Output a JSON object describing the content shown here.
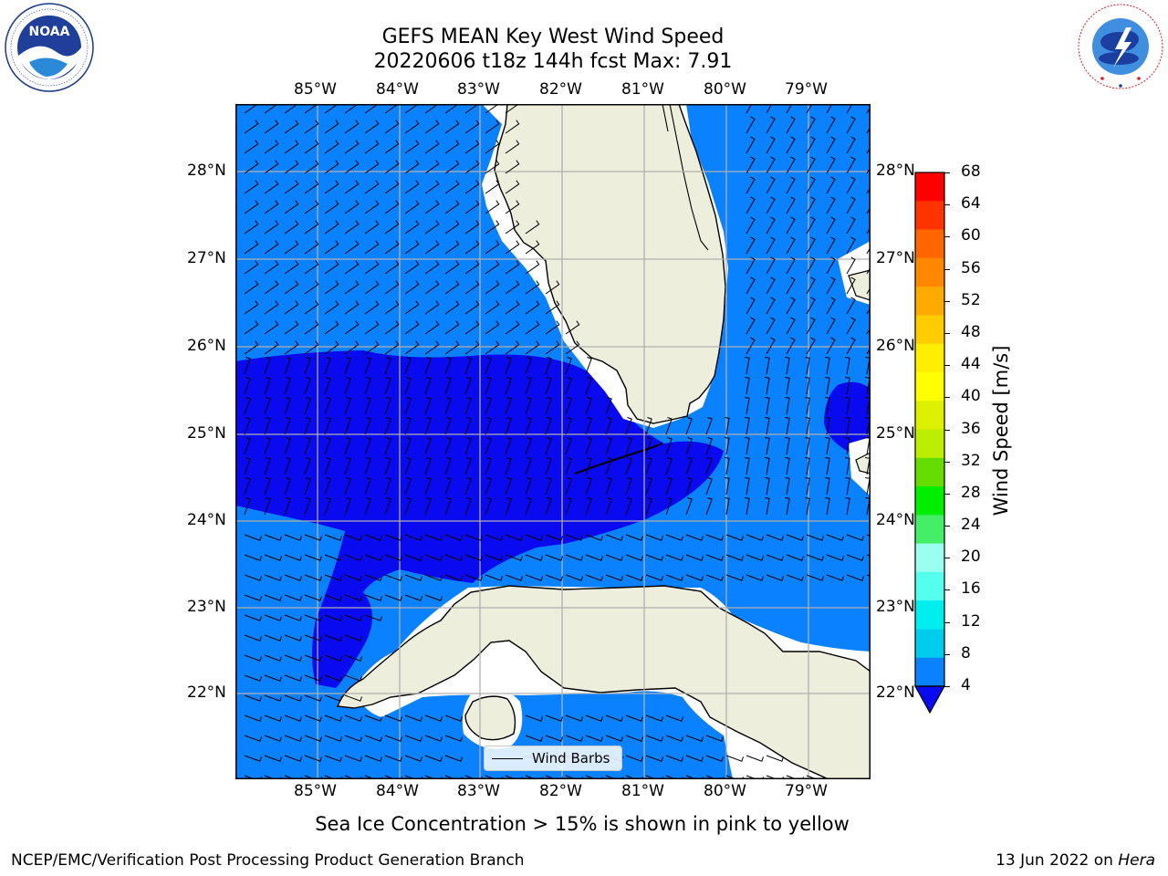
{
  "header": {
    "title_line1": "GEFS MEAN Key West Wind Speed",
    "title_line2": "20220606 t18z 144h fcst   Max: 7.91"
  },
  "logos": {
    "noaa_text": "NOAA",
    "noaa_ring": "NATIONAL OCEANIC AND ATMOSPHERIC ADMINISTRATION · U.S. DEPARTMENT OF COMMERCE",
    "nws_ring": "NATIONAL WEATHER SERVICE"
  },
  "map": {
    "lon_labels": [
      "85°W",
      "84°W",
      "83°W",
      "82°W",
      "81°W",
      "80°W",
      "79°W"
    ],
    "lat_labels": [
      "28°N",
      "27°N",
      "26°N",
      "25°N",
      "24°N",
      "23°N",
      "22°N"
    ],
    "legend_label": "Wind Barbs",
    "colors": {
      "ocean_4_8": "#0a82ff",
      "ocean_below_4": "#0a0af0",
      "land": "#eeeedd",
      "grid": "#b0b0b0"
    }
  },
  "colorbar": {
    "label": "Wind Speed [m/s]",
    "ticks": [
      "68",
      "64",
      "60",
      "56",
      "52",
      "48",
      "44",
      "40",
      "36",
      "32",
      "28",
      "24",
      "20",
      "16",
      "12",
      "8",
      "4"
    ],
    "colors": [
      "#ff0000",
      "#ff3300",
      "#ff6600",
      "#ff8800",
      "#ffaa00",
      "#ffcc00",
      "#ffee00",
      "#ffff00",
      "#ddf000",
      "#bbee00",
      "#66dd00",
      "#00ee00",
      "#44ee66",
      "#99ffee",
      "#55ffee",
      "#00eeee",
      "#00ccee",
      "#0a82ff"
    ]
  },
  "note": "Sea Ice Concentration > 15% is shown in pink to yellow",
  "footer": {
    "left": "NCEP/EMC/Verification Post Processing Product Generation Branch",
    "date": "13 Jun 2022 on ",
    "host": "Hera"
  }
}
